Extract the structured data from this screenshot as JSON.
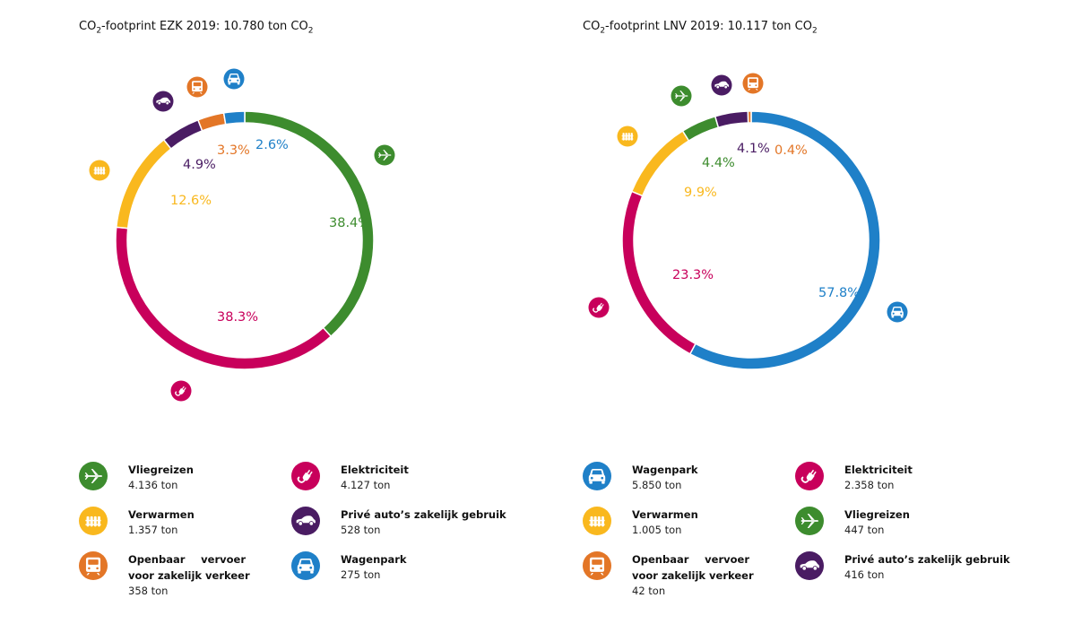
{
  "chart_data": [
    {
      "type": "pie",
      "title_pre": "CO",
      "title_sub": "2",
      "title_mid": "-footprint EZK 2019: 10.780 ton CO",
      "title_sub2": "2",
      "slices": [
        {
          "name": "Vliegreizen",
          "value": 38.4,
          "label": "38.4%",
          "color": "#3d8c2e",
          "icon": "plane-icon"
        },
        {
          "name": "Elektriciteit",
          "value": 38.3,
          "label": "38.3%",
          "color": "#c8005b",
          "icon": "plug-icon"
        },
        {
          "name": "Verwarmen",
          "value": 12.6,
          "label": "12.6%",
          "color": "#f9b81e",
          "icon": "radiator-icon"
        },
        {
          "name": "Privé auto’s zakelijk gebruik",
          "value": 4.9,
          "label": "4.9%",
          "color": "#4a1c63",
          "icon": "car-icon"
        },
        {
          "name": "Openbaar vervoer voor zakelijk verkeer",
          "value": 3.3,
          "label": "3.3%",
          "color": "#e37627",
          "icon": "train-icon"
        },
        {
          "name": "Wagenpark",
          "value": 2.6,
          "label": "2.6%",
          "color": "#1f80c8",
          "icon": "car-front-icon"
        }
      ],
      "legend": [
        {
          "name": "Vliegreizen",
          "value": "4.136 ton",
          "color": "#3d8c2e",
          "icon": "plane-icon"
        },
        {
          "name": "Elektriciteit",
          "value": "4.127 ton",
          "color": "#c8005b",
          "icon": "plug-icon"
        },
        {
          "name": "Verwarmen",
          "value": "1.357 ton",
          "color": "#f9b81e",
          "icon": "radiator-icon"
        },
        {
          "name": "Privé auto’s zakelijk gebruik",
          "value": "528 ton",
          "color": "#4a1c63",
          "icon": "car-icon"
        },
        {
          "name_line1": "Openbaar vervoer",
          "name_line2": "voor zakelijk verkeer",
          "value": "358 ton",
          "color": "#e37627",
          "icon": "train-icon"
        },
        {
          "name": "Wagenpark",
          "value": "275 ton",
          "color": "#1f80c8",
          "icon": "car-front-icon"
        }
      ]
    },
    {
      "type": "pie",
      "title_pre": "CO",
      "title_sub": "2",
      "title_mid": "-footprint LNV 2019: 10.117 ton CO",
      "title_sub2": "2",
      "slices": [
        {
          "name": "Wagenpark",
          "value": 57.8,
          "label": "57.8%",
          "color": "#1f80c8",
          "icon": "car-front-icon"
        },
        {
          "name": "Elektriciteit",
          "value": 23.3,
          "label": "23.3%",
          "color": "#c8005b",
          "icon": "plug-icon"
        },
        {
          "name": "Verwarmen",
          "value": 9.9,
          "label": "9.9%",
          "color": "#f9b81e",
          "icon": "radiator-icon"
        },
        {
          "name": "Vliegreizen",
          "value": 4.4,
          "label": "4.4%",
          "color": "#3d8c2e",
          "icon": "plane-icon"
        },
        {
          "name": "Privé auto’s zakelijk gebruik",
          "value": 4.1,
          "label": "4.1%",
          "color": "#4a1c63",
          "icon": "car-icon"
        },
        {
          "name": "Openbaar vervoer voor zakelijk verkeer",
          "value": 0.4,
          "label": "0.4%",
          "color": "#e37627",
          "icon": "train-icon"
        }
      ],
      "legend": [
        {
          "name": "Wagenpark",
          "value": "5.850 ton",
          "color": "#1f80c8",
          "icon": "car-front-icon"
        },
        {
          "name": "Elektriciteit",
          "value": "2.358 ton",
          "color": "#c8005b",
          "icon": "plug-icon"
        },
        {
          "name": "Verwarmen",
          "value": "1.005 ton",
          "color": "#f9b81e",
          "icon": "radiator-icon"
        },
        {
          "name": "Vliegreizen",
          "value": "447 ton",
          "color": "#3d8c2e",
          "icon": "plane-icon"
        },
        {
          "name_line1": "Openbaar vervoer",
          "name_line2": "voor zakelijk verkeer",
          "value": "42 ton",
          "color": "#e37627",
          "icon": "train-icon"
        },
        {
          "name": "Privé auto’s zakelijk gebruik",
          "value": "416 ton",
          "color": "#4a1c63",
          "icon": "car-icon"
        }
      ]
    }
  ]
}
